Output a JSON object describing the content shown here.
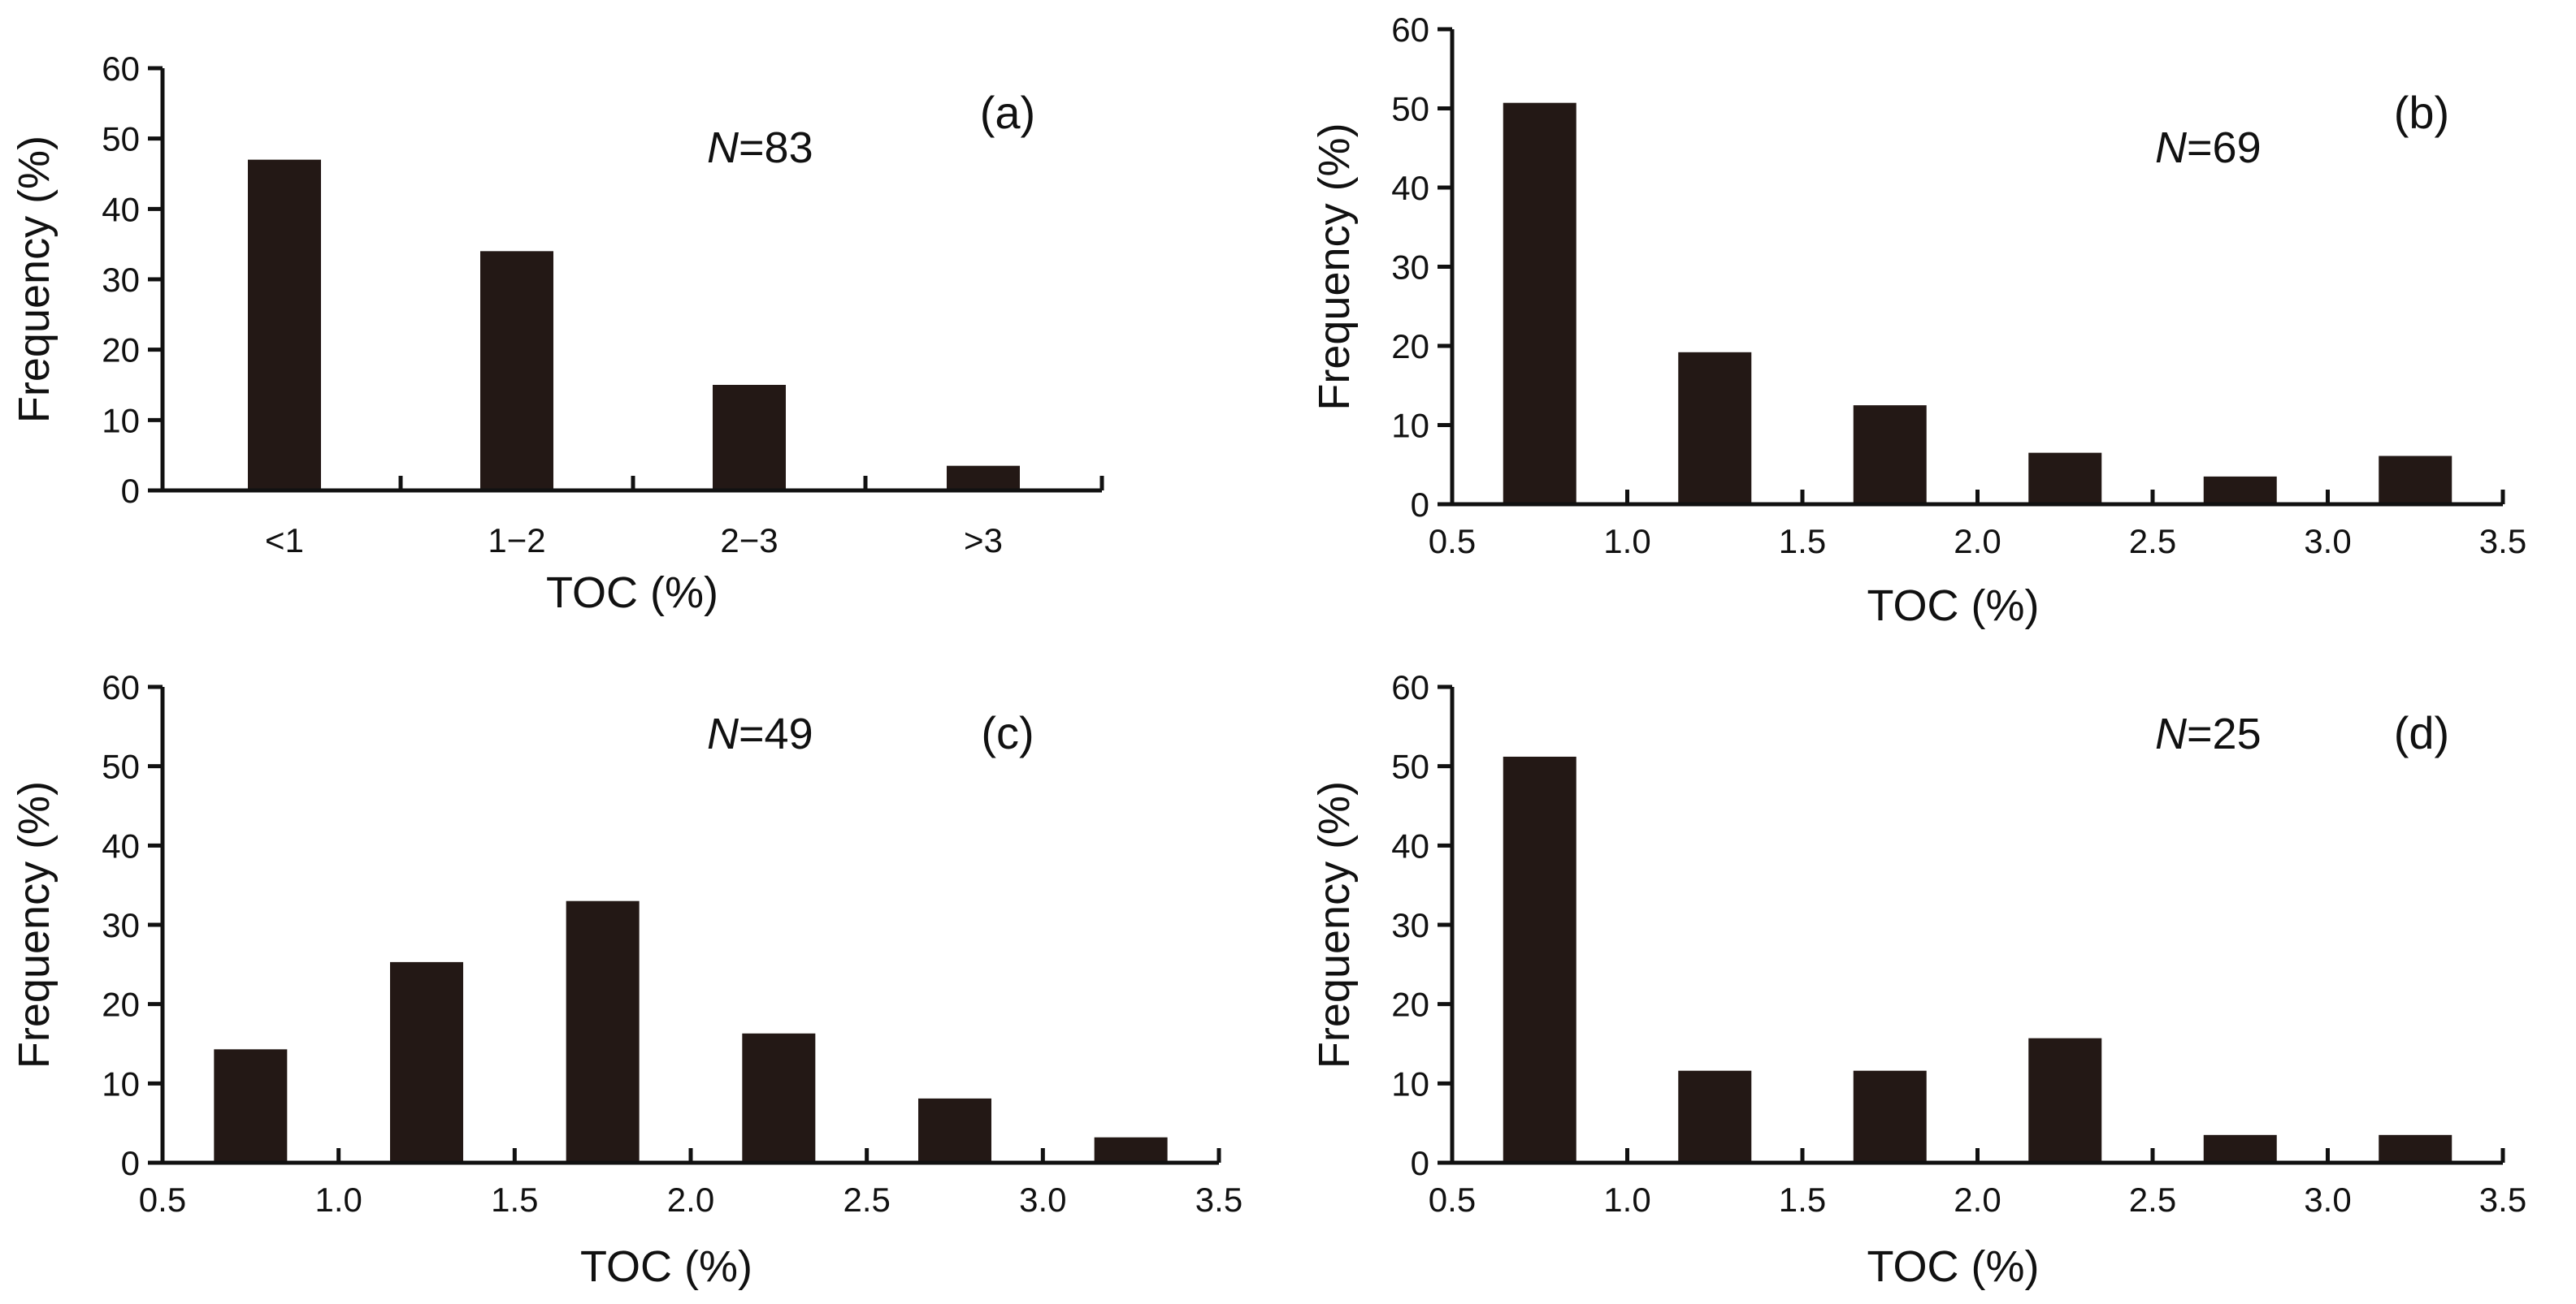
{
  "chart_data": [
    {
      "id": "a",
      "type": "bar",
      "panel_label": "(a)",
      "n_prefix": "N",
      "n_suffix": "=83",
      "categories": [
        "<1",
        "1−2",
        "2−3",
        ">3"
      ],
      "values": [
        47,
        34,
        15,
        3.5
      ],
      "xlabel": "TOC (%)",
      "ylabel": "Frequency (%)",
      "ylim": [
        0,
        60
      ],
      "yticks": [
        0,
        10,
        20,
        30,
        40,
        50,
        60
      ],
      "ytick_labels": [
        "0",
        "10",
        "20",
        "30",
        "40",
        "50",
        "60"
      ],
      "grid": false
    },
    {
      "id": "b",
      "type": "bar",
      "panel_label": "(b)",
      "n_prefix": "N",
      "n_suffix": "=69",
      "bins": [
        [
          0.75,
          50.7
        ],
        [
          1.25,
          19.2
        ],
        [
          1.75,
          12.5
        ],
        [
          2.25,
          6.5
        ],
        [
          2.75,
          3.5
        ],
        [
          3.25,
          6.1
        ]
      ],
      "xlabel": "TOC (%)",
      "ylabel": "Frequency (%)",
      "xlim": [
        0.5,
        3.5
      ],
      "xticks": [
        0.5,
        1.0,
        1.5,
        2.0,
        2.5,
        3.0,
        3.5
      ],
      "xtick_labels": [
        "0.5",
        "1.0",
        "1.5",
        "2.0",
        "2.5",
        "3.0",
        "3.5"
      ],
      "ylim": [
        0,
        60
      ],
      "yticks": [
        0,
        10,
        20,
        30,
        40,
        50,
        60
      ],
      "ytick_labels": [
        "0",
        "10",
        "20",
        "30",
        "40",
        "50",
        "60"
      ],
      "grid": false
    },
    {
      "id": "c",
      "type": "bar",
      "panel_label": "(c)",
      "n_prefix": "N",
      "n_suffix": "=49",
      "bins": [
        [
          0.75,
          14.3
        ],
        [
          1.25,
          25.3
        ],
        [
          1.75,
          33
        ],
        [
          2.25,
          16.3
        ],
        [
          2.75,
          8.1
        ],
        [
          3.25,
          3.2
        ]
      ],
      "xlabel": "TOC (%)",
      "ylabel": "Frequency (%)",
      "xlim": [
        0.5,
        3.5
      ],
      "xticks": [
        0.5,
        1.0,
        1.5,
        2.0,
        2.5,
        3.0,
        3.5
      ],
      "xtick_labels": [
        "0.5",
        "1.0",
        "1.5",
        "2.0",
        "2.5",
        "3.0",
        "3.5"
      ],
      "ylim": [
        0,
        60
      ],
      "yticks": [
        0,
        10,
        20,
        30,
        40,
        50,
        60
      ],
      "ytick_labels": [
        "0",
        "10",
        "20",
        "30",
        "40",
        "50",
        "60"
      ],
      "grid": false
    },
    {
      "id": "d",
      "type": "bar",
      "panel_label": "(d)",
      "n_prefix": "N",
      "n_suffix": "=25",
      "bins": [
        [
          0.75,
          51.2
        ],
        [
          1.25,
          11.6
        ],
        [
          1.75,
          11.6
        ],
        [
          2.25,
          15.7
        ],
        [
          2.75,
          3.5
        ],
        [
          3.25,
          3.5
        ]
      ],
      "xlabel": "TOC (%)",
      "ylabel": "Frequency (%)",
      "xlim": [
        0.5,
        3.5
      ],
      "xticks": [
        0.5,
        1.0,
        1.5,
        2.0,
        2.5,
        3.0,
        3.5
      ],
      "xtick_labels": [
        "0.5",
        "1.0",
        "1.5",
        "2.0",
        "2.5",
        "3.0",
        "3.5"
      ],
      "ylim": [
        0,
        60
      ],
      "yticks": [
        0,
        10,
        20,
        30,
        40,
        50,
        60
      ],
      "ytick_labels": [
        "0",
        "10",
        "20",
        "30",
        "40",
        "50",
        "60"
      ],
      "grid": false
    }
  ]
}
